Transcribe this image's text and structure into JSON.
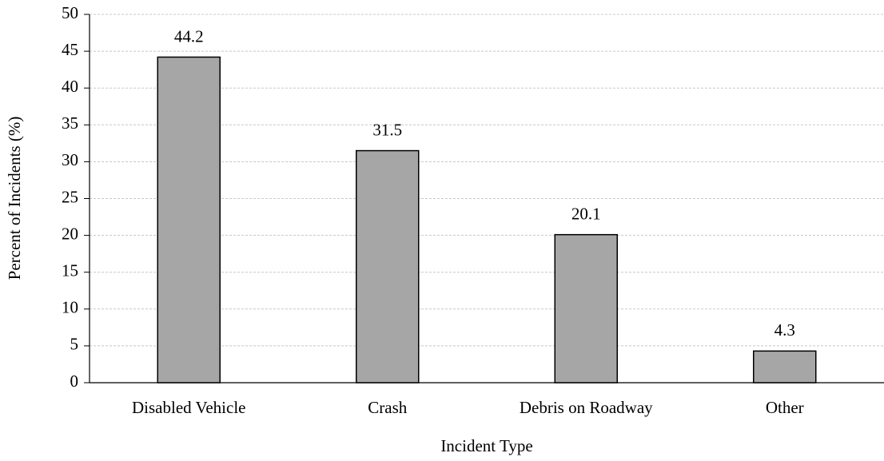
{
  "chart_data": {
    "type": "bar",
    "categories": [
      "Disabled Vehicle",
      "Crash",
      "Debris on Roadway",
      "Other"
    ],
    "values": [
      44.2,
      31.5,
      20.1,
      4.3
    ],
    "color": "#a6a6a6",
    "xlabel": "Incident Type",
    "ylabel": "Percent of Incidents (%)",
    "ylim": [
      0,
      50
    ],
    "yticks": [
      0,
      5,
      10,
      15,
      20,
      25,
      30,
      35,
      40,
      45,
      50
    ],
    "grid": true
  }
}
